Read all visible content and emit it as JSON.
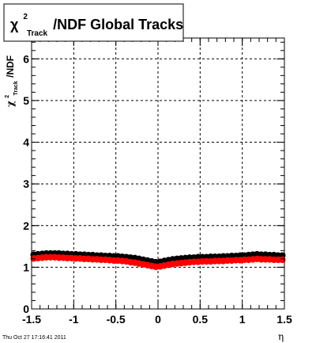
{
  "chart_data": {
    "type": "scatter",
    "title": {
      "chi": "χ",
      "sup": "2",
      "sub": "Track",
      "rest": "/NDF  Global Tracks"
    },
    "ylabel": {
      "chi": "χ",
      "sup": "2",
      "sub": "Track",
      "rest": "/NDF"
    },
    "xlabel": "η",
    "xlim": [
      -1.5,
      1.5
    ],
    "ylim": [
      0,
      6.5
    ],
    "x_ticks": [
      "-1.5",
      "-1",
      "-0.5",
      "0",
      "0.5",
      "1",
      "1.5"
    ],
    "y_ticks": [
      "0",
      "1",
      "2",
      "3",
      "4",
      "5",
      "6"
    ],
    "grid": true,
    "series": [
      {
        "color": "#000000",
        "x": [
          -1.475,
          -1.425,
          -1.375,
          -1.325,
          -1.275,
          -1.225,
          -1.175,
          -1.125,
          -1.075,
          -1.025,
          -0.975,
          -0.925,
          -0.875,
          -0.825,
          -0.775,
          -0.725,
          -0.675,
          -0.625,
          -0.575,
          -0.525,
          -0.475,
          -0.425,
          -0.375,
          -0.325,
          -0.275,
          -0.225,
          -0.175,
          -0.125,
          -0.075,
          -0.025,
          0.025,
          0.075,
          0.125,
          0.175,
          0.225,
          0.275,
          0.325,
          0.375,
          0.425,
          0.475,
          0.525,
          0.575,
          0.625,
          0.675,
          0.725,
          0.775,
          0.825,
          0.875,
          0.925,
          0.975,
          1.025,
          1.075,
          1.125,
          1.175,
          1.225,
          1.275,
          1.325,
          1.375,
          1.425,
          1.475
        ],
        "y": [
          1.3,
          1.31,
          1.32,
          1.33,
          1.33,
          1.33,
          1.33,
          1.32,
          1.32,
          1.31,
          1.31,
          1.3,
          1.3,
          1.29,
          1.29,
          1.28,
          1.28,
          1.27,
          1.27,
          1.26,
          1.26,
          1.25,
          1.24,
          1.23,
          1.22,
          1.2,
          1.18,
          1.16,
          1.14,
          1.12,
          1.13,
          1.15,
          1.17,
          1.19,
          1.2,
          1.21,
          1.22,
          1.23,
          1.23,
          1.24,
          1.24,
          1.24,
          1.25,
          1.25,
          1.25,
          1.26,
          1.26,
          1.27,
          1.27,
          1.28,
          1.28,
          1.29,
          1.3,
          1.31,
          1.3,
          1.3,
          1.29,
          1.29,
          1.28,
          1.28
        ]
      },
      {
        "color": "#ff0000",
        "x": [
          -1.475,
          -1.425,
          -1.375,
          -1.325,
          -1.275,
          -1.225,
          -1.175,
          -1.125,
          -1.075,
          -1.025,
          -0.975,
          -0.925,
          -0.875,
          -0.825,
          -0.775,
          -0.725,
          -0.675,
          -0.625,
          -0.575,
          -0.525,
          -0.475,
          -0.425,
          -0.375,
          -0.325,
          -0.275,
          -0.225,
          -0.175,
          -0.125,
          -0.075,
          -0.025,
          0.025,
          0.075,
          0.125,
          0.175,
          0.225,
          0.275,
          0.325,
          0.375,
          0.425,
          0.475,
          0.525,
          0.575,
          0.625,
          0.675,
          0.725,
          0.775,
          0.825,
          0.875,
          0.925,
          0.975,
          1.025,
          1.075,
          1.125,
          1.175,
          1.225,
          1.275,
          1.325,
          1.375,
          1.425,
          1.475
        ],
        "y": [
          1.21,
          1.22,
          1.23,
          1.24,
          1.24,
          1.24,
          1.23,
          1.23,
          1.22,
          1.22,
          1.21,
          1.21,
          1.2,
          1.2,
          1.19,
          1.19,
          1.18,
          1.18,
          1.17,
          1.16,
          1.16,
          1.15,
          1.14,
          1.12,
          1.11,
          1.09,
          1.07,
          1.05,
          1.03,
          1.01,
          1.02,
          1.04,
          1.06,
          1.08,
          1.09,
          1.1,
          1.11,
          1.12,
          1.13,
          1.13,
          1.14,
          1.14,
          1.14,
          1.15,
          1.15,
          1.15,
          1.16,
          1.16,
          1.17,
          1.17,
          1.18,
          1.18,
          1.19,
          1.2,
          1.19,
          1.19,
          1.19,
          1.18,
          1.18,
          1.18
        ]
      }
    ]
  },
  "footer": {
    "timestamp": "Thu Oct 27 17:16:41 2011"
  }
}
